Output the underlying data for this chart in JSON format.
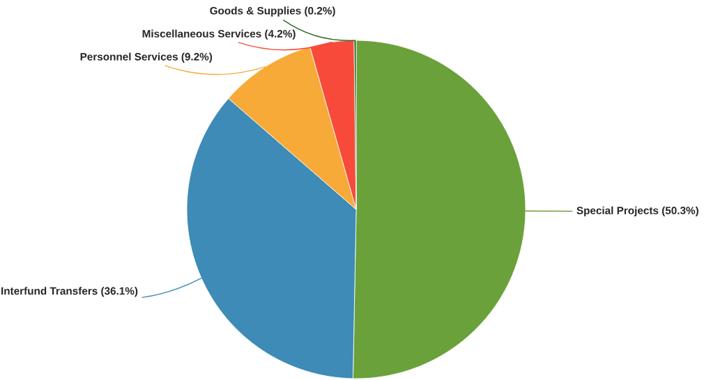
{
  "chart_data": {
    "type": "pie",
    "categories": [
      "Special Projects (50.3%)",
      "Interfund Transfers (36.1%)",
      "Personnel Services (9.2%)",
      "Miscellaneous Services (4.2%)",
      "Goods & Supplies (0.2%)"
    ],
    "values": [
      50.3,
      36.1,
      9.2,
      4.2,
      0.2
    ],
    "colors": [
      "#6aa13a",
      "#3d8bb6",
      "#f7aa38",
      "#f74a3a",
      "#2d6a1f"
    ],
    "legend": false
  }
}
